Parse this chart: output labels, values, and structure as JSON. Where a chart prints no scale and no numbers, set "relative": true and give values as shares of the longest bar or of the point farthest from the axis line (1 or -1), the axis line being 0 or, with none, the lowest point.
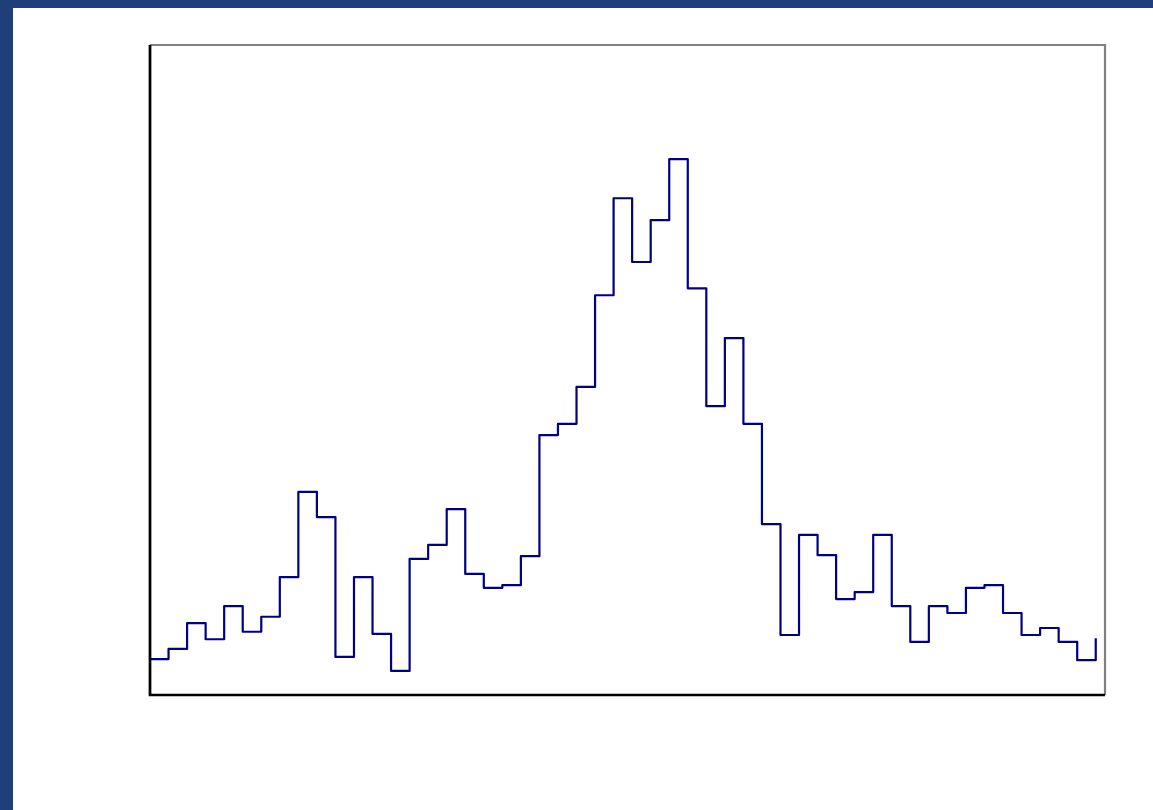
{
  "chart_data": {
    "type": "step",
    "relative": true,
    "color": "#000080",
    "categories": [
      null,
      null,
      null,
      null,
      null,
      null,
      null,
      null,
      null,
      null,
      null,
      null,
      null,
      null,
      null,
      null,
      null,
      null,
      null,
      null,
      null,
      null,
      null,
      null,
      null,
      null,
      null,
      null,
      null,
      null,
      null,
      null,
      null,
      null,
      null,
      null,
      null,
      null,
      null,
      null,
      null,
      null,
      null,
      null,
      null,
      null,
      null,
      null,
      null,
      null,
      null,
      null
    ],
    "values": [
      0.067,
      0.086,
      0.134,
      0.104,
      0.166,
      0.118,
      0.146,
      0.22,
      0.379,
      0.332,
      0.071,
      0.22,
      0.114,
      0.045,
      0.254,
      0.28,
      0.347,
      0.226,
      0.2,
      0.205,
      0.259,
      0.485,
      0.506,
      0.575,
      0.746,
      0.927,
      0.808,
      0.886,
      1,
      0.759,
      0.539,
      0.666,
      0.506,
      0.319,
      0.112,
      0.299,
      0.261,
      0.179,
      0.192,
      0.299,
      0.166,
      0.099,
      0.166,
      0.153,
      0.2,
      0.205,
      0.153,
      0.112,
      0.125,
      0.099,
      0.065,
      0.106
    ]
  }
}
